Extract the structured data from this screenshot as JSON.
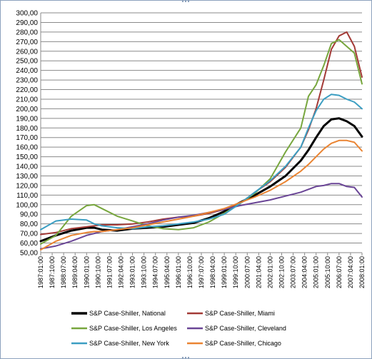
{
  "chart_data": {
    "type": "line",
    "title": "",
    "xlabel": "",
    "ylabel": "",
    "ylim": [
      50,
      300
    ],
    "yticks": [
      "300,00",
      "290,00",
      "280,00",
      "270,00",
      "260,00",
      "250,00",
      "240,00",
      "230,00",
      "220,00",
      "210,00",
      "200,00",
      "190,00",
      "180,00",
      "170,00",
      "160,00",
      "150,00",
      "140,00",
      "130,00",
      "120,00",
      "110,00",
      "100,00",
      "90,00",
      "80,00",
      "70,00",
      "60,00",
      "50,00"
    ],
    "x_tick_labels": [
      "1987:01:00",
      "1987:10:00",
      "1988:07:00",
      "1989:04:00",
      "1990:01:00",
      "1990:10:00",
      "1991:07:00",
      "1992:04:00",
      "1993:01:00",
      "1993:10:00",
      "1994:07:00",
      "1995:04:00",
      "1996:01:00",
      "1996:10:00",
      "1997:07:00",
      "1998:04:00",
      "1999:01:00",
      "1999:10:00",
      "2000:07:00",
      "2001:04:00",
      "2002:01:00",
      "2002:10:00",
      "2003:07:00",
      "2004:04:00",
      "2005:01:00",
      "2005:10:00",
      "2006:07:00",
      "2007:04:00",
      "2008:01:00"
    ],
    "grid": true,
    "legend_position": "bottom",
    "x": [
      1987.0,
      1988.0,
      1989.0,
      1990.0,
      1990.5,
      1991.0,
      1992.0,
      1993.0,
      1994.0,
      1995.0,
      1996.0,
      1997.0,
      1998.0,
      1999.0,
      2000.0,
      2001.0,
      2002.0,
      2003.0,
      2004.0,
      2004.5,
      2005.0,
      2005.5,
      2006.0,
      2006.5,
      2007.0,
      2007.5,
      2008.0
    ],
    "series": [
      {
        "name": "S&P Case-Shiller, National",
        "color": "#000000",
        "width": 3,
        "values": [
          62,
          68,
          73,
          76,
          76,
          74,
          73,
          75,
          76,
          77,
          79,
          81,
          86,
          93,
          102,
          110,
          119,
          130,
          146,
          157,
          170,
          182,
          189,
          190,
          187,
          182,
          171
        ]
      },
      {
        "name": "S&P Case-Shiller, Miami",
        "color": "#a33a36",
        "width": 2,
        "values": [
          69,
          71,
          75,
          77,
          78,
          79,
          79,
          80,
          82,
          85,
          87,
          88,
          91,
          95,
          101,
          113,
          124,
          139,
          160,
          178,
          200,
          230,
          262,
          276,
          280,
          265,
          233
        ]
      },
      {
        "name": "S&P Case-Shiller, Los Angeles",
        "color": "#77a63d",
        "width": 2,
        "values": [
          59,
          68,
          88,
          99,
          100,
          96,
          88,
          83,
          78,
          75,
          74,
          76,
          82,
          91,
          101,
          112,
          127,
          155,
          180,
          213,
          225,
          245,
          268,
          272,
          265,
          258,
          226
        ]
      },
      {
        "name": "S&P Case-Shiller, Cleveland",
        "color": "#6a4596",
        "width": 2,
        "values": [
          54,
          57,
          62,
          68,
          70,
          72,
          74,
          77,
          80,
          84,
          87,
          89,
          92,
          95,
          99,
          102,
          105,
          109,
          113,
          116,
          119,
          120,
          122,
          122,
          119,
          118,
          108
        ]
      },
      {
        "name": "S&P Case-Shiller, New York",
        "color": "#3b9ec2",
        "width": 2,
        "values": [
          74,
          83,
          85,
          84,
          80,
          78,
          76,
          75,
          77,
          78,
          80,
          82,
          85,
          90,
          101,
          113,
          125,
          140,
          160,
          180,
          198,
          210,
          215,
          214,
          210,
          207,
          200
        ]
      },
      {
        "name": "S&P Case-Shiller, Chicago",
        "color": "#ea8432",
        "width": 2,
        "values": [
          53,
          62,
          68,
          71,
          72,
          72,
          74,
          76,
          79,
          82,
          85,
          88,
          92,
          96,
          102,
          108,
          115,
          124,
          135,
          142,
          150,
          158,
          164,
          167,
          167,
          165,
          156
        ]
      }
    ]
  }
}
